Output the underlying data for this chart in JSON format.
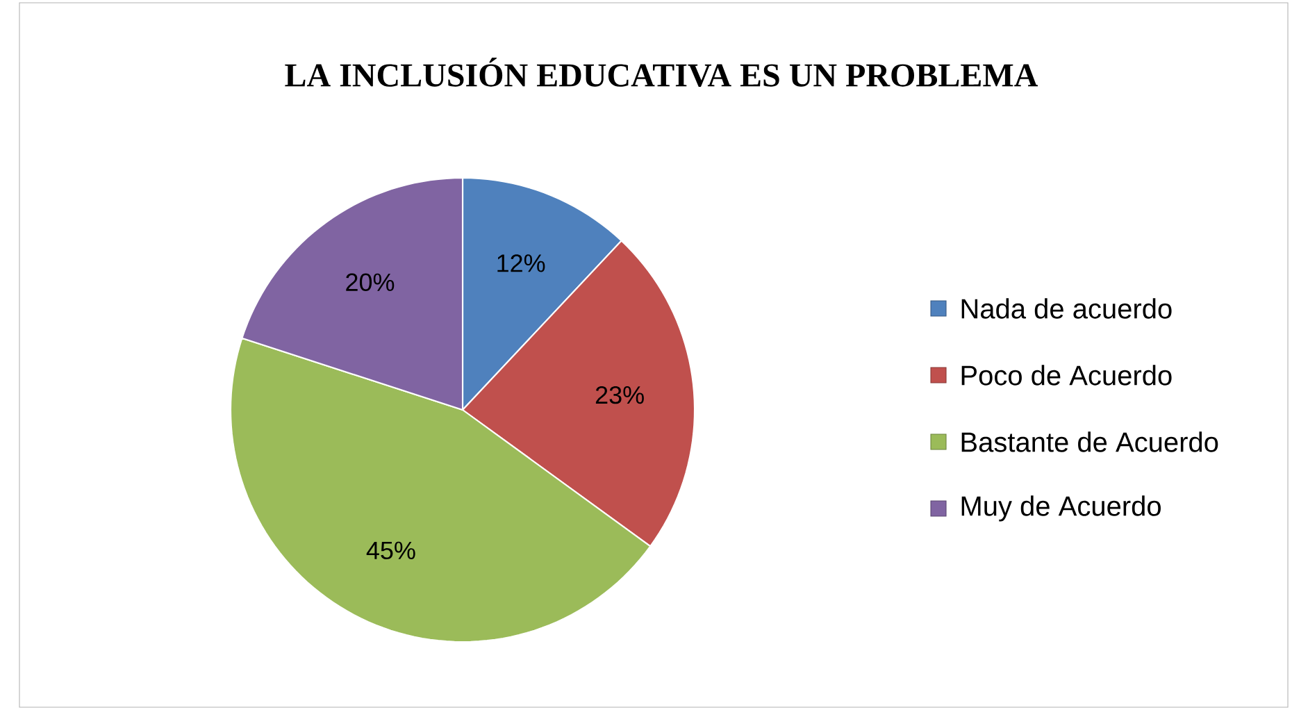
{
  "chart_data": {
    "type": "pie",
    "title": "LA INCLUSIÓN  EDUCATIVA ES UN PROBLEMA",
    "categories": [
      "Nada de acuerdo",
      "Poco de Acuerdo",
      "Bastante de Acuerdo",
      "Muy de Acuerdo"
    ],
    "values": [
      12,
      23,
      45,
      20
    ],
    "value_labels": [
      "12%",
      "23%",
      "45%",
      "20%"
    ],
    "colors": [
      "#4f81bd",
      "#c0504d",
      "#9bbb59",
      "#8064a2"
    ],
    "legend": "right"
  }
}
